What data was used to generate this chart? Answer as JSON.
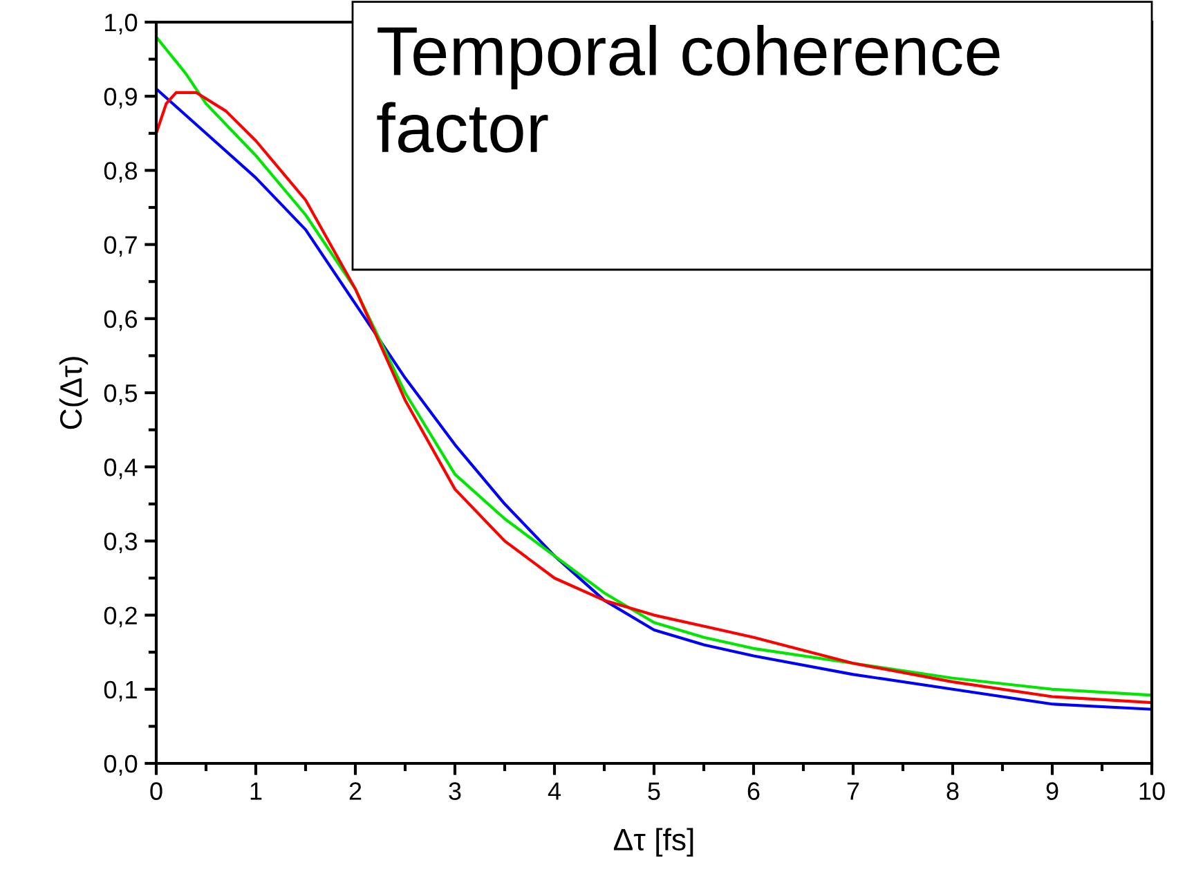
{
  "chart_data": {
    "type": "line",
    "title": "Temporal coherence factor",
    "xlabel": "Δτ [fs]",
    "ylabel": "C(Δτ)",
    "xlim": [
      0,
      10
    ],
    "ylim": [
      0,
      1
    ],
    "xticks": [
      0,
      1,
      2,
      3,
      4,
      5,
      6,
      7,
      8,
      9,
      10
    ],
    "yticks": [
      {
        "value": 0,
        "label": "0,0"
      },
      {
        "value": 0.1,
        "label": "0,1"
      },
      {
        "value": 0.2,
        "label": "0,2"
      },
      {
        "value": 0.3,
        "label": "0,3"
      },
      {
        "value": 0.4,
        "label": "0,4"
      },
      {
        "value": 0.5,
        "label": "0,5"
      },
      {
        "value": 0.6,
        "label": "0,6"
      },
      {
        "value": 0.7,
        "label": "0,7"
      },
      {
        "value": 0.8,
        "label": "0,8"
      },
      {
        "value": 0.9,
        "label": "0,9"
      },
      {
        "value": 1,
        "label": "1,0"
      }
    ],
    "grid": false,
    "marker": "none",
    "line_style": "solid",
    "series": [
      {
        "color": "#0000ff",
        "x": [
          0,
          0.5,
          1,
          1.5,
          2,
          2.5,
          3,
          3.5,
          4,
          4.5,
          5,
          5.5,
          6,
          7,
          8,
          9,
          10
        ],
        "values": [
          0.91,
          0.85,
          0.79,
          0.72,
          0.62,
          0.52,
          0.43,
          0.35,
          0.28,
          0.22,
          0.18,
          0.16,
          0.145,
          0.12,
          0.1,
          0.08,
          0.073
        ]
      },
      {
        "color": "#00e600",
        "x": [
          0,
          0.3,
          0.5,
          1,
          1.5,
          2,
          2.5,
          3,
          3.5,
          4,
          4.5,
          5,
          5.5,
          6,
          7,
          8,
          9,
          10
        ],
        "values": [
          0.98,
          0.93,
          0.89,
          0.82,
          0.74,
          0.64,
          0.5,
          0.39,
          0.33,
          0.28,
          0.23,
          0.19,
          0.17,
          0.155,
          0.135,
          0.115,
          0.1,
          0.092
        ]
      },
      {
        "color": "#ff0000",
        "x": [
          0,
          0.1,
          0.2,
          0.4,
          0.7,
          1,
          1.5,
          2,
          2.5,
          3,
          3.5,
          4,
          4.5,
          5,
          6,
          7,
          8,
          9,
          10
        ],
        "values": [
          0.85,
          0.89,
          0.905,
          0.905,
          0.88,
          0.84,
          0.76,
          0.64,
          0.49,
          0.37,
          0.3,
          0.25,
          0.22,
          0.2,
          0.17,
          0.135,
          0.11,
          0.09,
          0.082
        ]
      }
    ]
  }
}
